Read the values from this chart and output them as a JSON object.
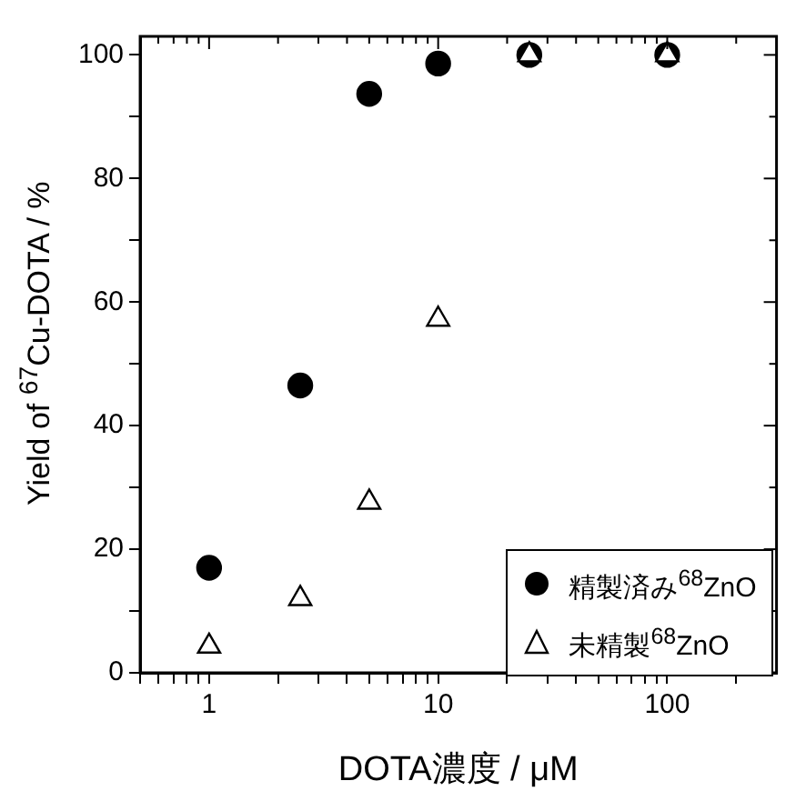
{
  "chart_data": {
    "type": "scatter",
    "xlabel": "DOTA濃度 / μM",
    "ylabel": "Yield of $^{67}$Cu-DOTA / %",
    "log": "x",
    "grid": false,
    "legend": "bottom right",
    "xlim": [
      0.5,
      300
    ],
    "xticks": [
      {
        "value": 0.5,
        "label": null
      },
      {
        "value": 0.6,
        "label": null
      },
      {
        "value": 0.7,
        "label": null
      },
      {
        "value": 0.8,
        "label": null
      },
      {
        "value": 0.9,
        "label": null
      },
      1,
      {
        "value": 2,
        "label": null
      },
      {
        "value": 3,
        "label": null
      },
      {
        "value": 4,
        "label": null
      },
      {
        "value": 5,
        "label": null
      },
      {
        "value": 6,
        "label": null
      },
      {
        "value": 7,
        "label": null
      },
      {
        "value": 8,
        "label": null
      },
      {
        "value": 9,
        "label": null
      },
      10,
      {
        "value": 20,
        "label": null
      },
      {
        "value": 30,
        "label": null
      },
      {
        "value": 40,
        "label": null
      },
      {
        "value": 50,
        "label": null
      },
      {
        "value": 60,
        "label": null
      },
      {
        "value": 70,
        "label": null
      },
      {
        "value": 80,
        "label": null
      },
      {
        "value": 90,
        "label": null
      },
      100,
      {
        "value": 200,
        "label": null
      }
    ],
    "ylim": [
      0,
      103
    ],
    "yticks": [
      0,
      {
        "value": 10,
        "label": null
      },
      20,
      {
        "value": 30,
        "label": null
      },
      40,
      {
        "value": 50,
        "label": null
      },
      60,
      {
        "value": 70,
        "label": null
      },
      80,
      {
        "value": 90,
        "label": null
      },
      100
    ],
    "series": [
      {
        "name": "精製済み$^{68}$ZnO",
        "color": "#000000",
        "marker": "circle",
        "x": [
          1,
          2.5,
          5,
          10,
          25,
          100
        ],
        "values": [
          17,
          46.5,
          93.7,
          98.6,
          100,
          100
        ]
      },
      {
        "name": "未精製$^{68}$ZnO",
        "color": "#000000",
        "marker": "triangle",
        "x": [
          1,
          2.5,
          5,
          10,
          25,
          100
        ],
        "values": [
          4.3,
          12,
          27.6,
          57.2,
          100,
          100
        ]
      }
    ]
  }
}
